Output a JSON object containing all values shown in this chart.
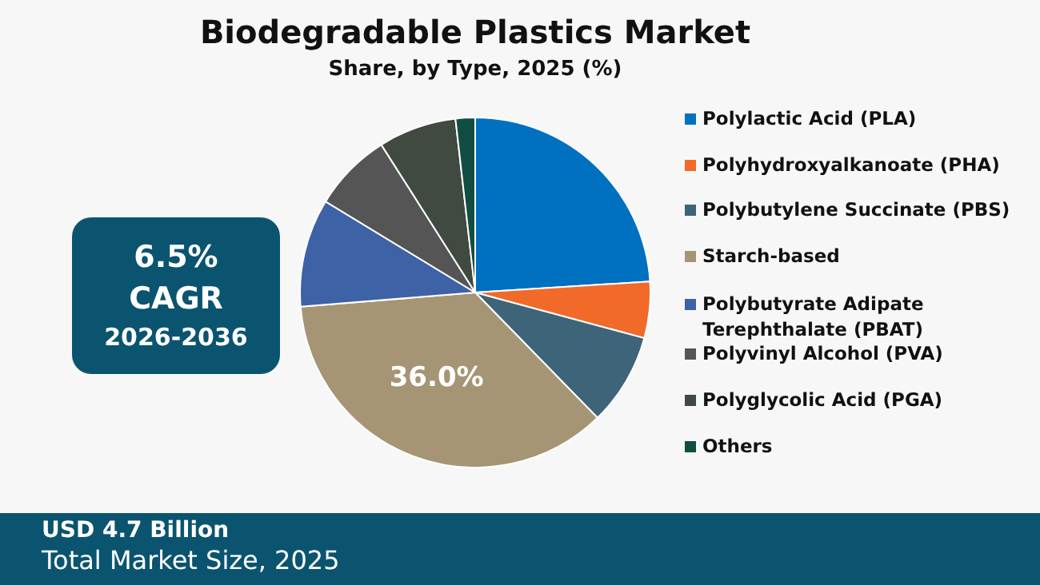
{
  "chart_data": {
    "type": "pie",
    "title": "Biodegradable Plastics Market",
    "subtitle": "Share, by Type, 2025 (%)",
    "categories": [
      "Polylactic Acid (PLA)",
      "Polyhydroxyalkanoate (PHA)",
      "Polybutylene Succinate (PBS)",
      "Starch-based",
      "Polybutyrate Adipate Terephthalate (PBAT)",
      "Polyvinyl Alcohol (PVA)",
      "Polyglycolic Acid (PGA)",
      "Others"
    ],
    "values": [
      24.0,
      5.2,
      8.5,
      36.0,
      10.0,
      7.3,
      7.2,
      1.8
    ],
    "colors": [
      "#0070c0",
      "#f26a2a",
      "#3d6478",
      "#a69574",
      "#3e62a6",
      "#555555",
      "#404a40",
      "#114d40"
    ],
    "value_labels": [
      null,
      null,
      null,
      "36.0%",
      null,
      null,
      null,
      null
    ],
    "legend": "right",
    "annotations": [
      "6.5%",
      "CAGR",
      "2026-2036",
      "USD 4.7 Billion",
      "Total Market Size, 2025"
    ]
  }
}
